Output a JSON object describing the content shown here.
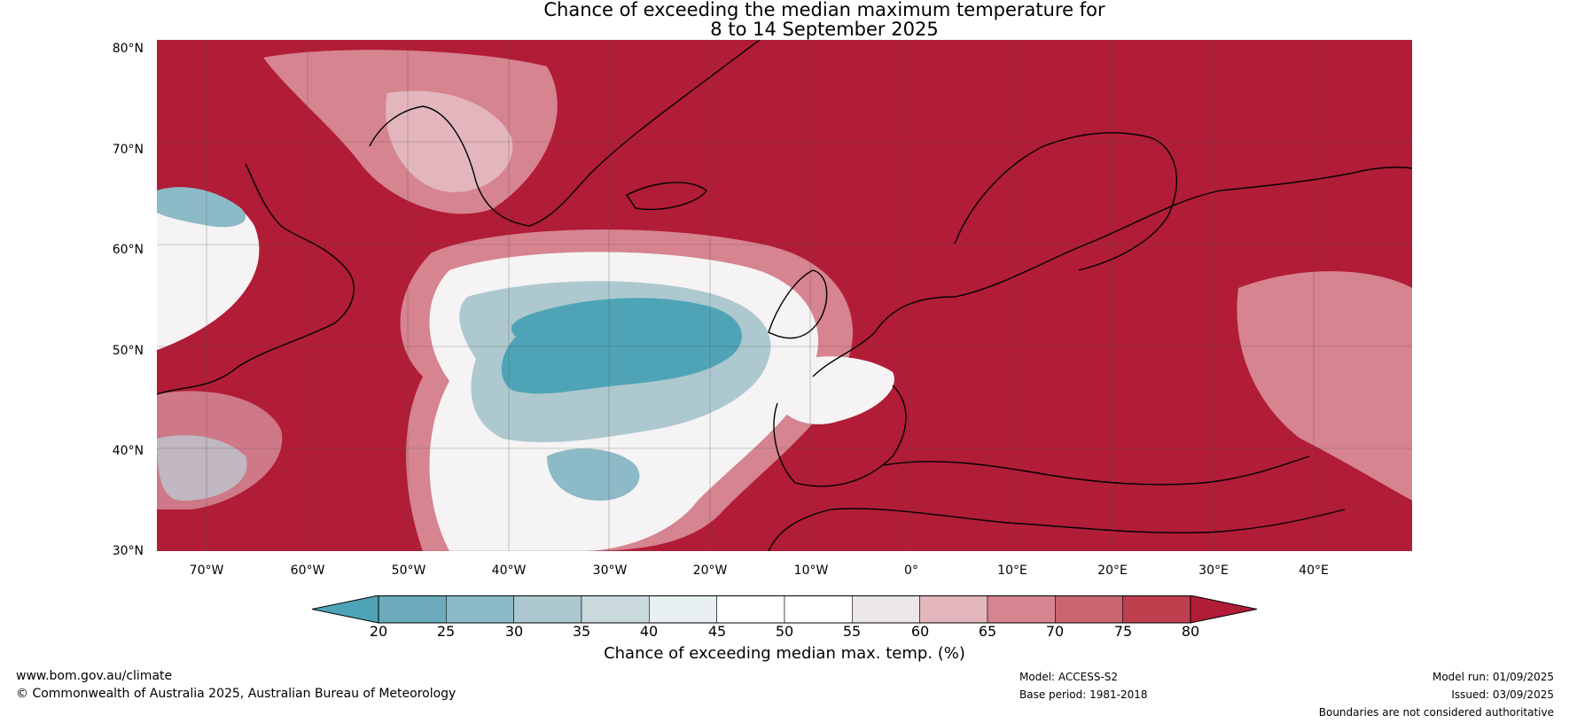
{
  "title": {
    "line1": "Chance of exceeding the median maximum temperature for",
    "line2": "8 to 14 September 2025"
  },
  "map": {
    "latitude_labels": [
      "80°N",
      "70°N",
      "60°N",
      "50°N",
      "40°N",
      "30°N"
    ],
    "longitude_labels": [
      "70°W",
      "60°W",
      "50°W",
      "40°W",
      "30°W",
      "20°W",
      "10°W",
      "0°",
      "10°E",
      "20°E",
      "30°E",
      "40°E"
    ]
  },
  "legend": {
    "label": "Chance of exceeding median max. temp. (%)",
    "ticks": [
      "20",
      "25",
      "30",
      "35",
      "40",
      "45",
      "50",
      "55",
      "60",
      "65",
      "70",
      "75",
      "80"
    ],
    "colors": [
      "#4ea4b6",
      "#6babbb",
      "#8cbac6",
      "#adc8cf",
      "#cad9dc",
      "#e9f0f1",
      "#ffffff",
      "#ffffff",
      "#ebe7e8",
      "#e3b6bd",
      "#d6848f",
      "#c96670",
      "#bf3f4f",
      "#b11c37"
    ],
    "over_color": "#b11c37",
    "under_color": "#4ea4b6"
  },
  "footer": {
    "website": "www.bom.gov.au/climate",
    "copyright": "© Commonwealth of Australia 2025, Australian Bureau of Meteorology",
    "model": "Model: ACCESS-S2",
    "base_period": "Base period: 1981-2018",
    "model_run": "Model run: 01/09/2025",
    "issued": "Issued: 03/09/2025",
    "disclaimer": "Boundaries are not considered authoritative"
  }
}
